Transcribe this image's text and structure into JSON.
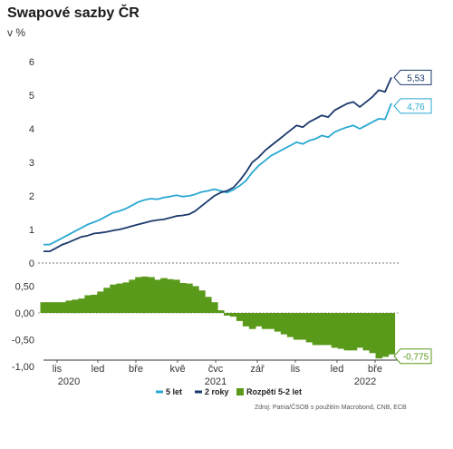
{
  "chart_data": {
    "type": "line",
    "title": "Swapové sazby ČR",
    "subtitle": "v %",
    "source": "Zdroj: Patria/ČSOB s použitím Macrobond, CNB, ECB",
    "colors": {
      "five": "#2aa8d2",
      "two": "#1b3a6b",
      "spread": "#5a9a1a",
      "zero_line": "#777777"
    },
    "x_ticks": [
      "lis",
      "led",
      "bře",
      "kvě",
      "čvc",
      "zář",
      "lis",
      "led",
      "bře"
    ],
    "x_years": [
      "2020",
      "2021",
      "2022"
    ],
    "top_panel": {
      "ylim": [
        0,
        6
      ],
      "y_ticks": [
        "0",
        "1",
        "2",
        "3",
        "4",
        "5",
        "6"
      ],
      "series": [
        {
          "name": "5 let",
          "key": "five",
          "end_label": "4,76",
          "values": [
            0.55,
            0.55,
            0.65,
            0.75,
            0.85,
            0.95,
            1.05,
            1.15,
            1.22,
            1.3,
            1.4,
            1.5,
            1.55,
            1.62,
            1.72,
            1.82,
            1.88,
            1.92,
            1.9,
            1.95,
            1.98,
            2.02,
            1.98,
            2.0,
            2.05,
            2.12,
            2.15,
            2.2,
            2.15,
            2.1,
            2.18,
            2.3,
            2.45,
            2.7,
            2.9,
            3.05,
            3.2,
            3.3,
            3.4,
            3.5,
            3.6,
            3.55,
            3.65,
            3.7,
            3.8,
            3.75,
            3.9,
            3.98,
            4.05,
            4.1,
            4.0,
            4.1,
            4.2,
            4.3,
            4.28,
            4.76
          ]
        },
        {
          "name": "2 roky",
          "key": "two",
          "end_label": "5,53",
          "values": [
            0.35,
            0.35,
            0.45,
            0.55,
            0.62,
            0.7,
            0.78,
            0.82,
            0.88,
            0.9,
            0.93,
            0.97,
            1.0,
            1.05,
            1.1,
            1.15,
            1.2,
            1.25,
            1.28,
            1.3,
            1.35,
            1.4,
            1.42,
            1.45,
            1.55,
            1.7,
            1.85,
            2.0,
            2.1,
            2.15,
            2.25,
            2.45,
            2.7,
            3.0,
            3.15,
            3.35,
            3.5,
            3.65,
            3.8,
            3.95,
            4.1,
            4.05,
            4.2,
            4.3,
            4.4,
            4.35,
            4.55,
            4.65,
            4.75,
            4.8,
            4.65,
            4.8,
            4.95,
            5.15,
            5.1,
            5.53
          ]
        }
      ]
    },
    "bottom_panel": {
      "ylim": [
        -1.0,
        0.75
      ],
      "y_ticks": [
        "0,50",
        "0,00",
        "-0,50",
        "-1,00"
      ],
      "series": [
        {
          "name": "Rozpětí 5-2 let",
          "key": "spread",
          "type": "area",
          "end_label": "-0,775",
          "values": [
            0.2,
            0.2,
            0.2,
            0.2,
            0.23,
            0.25,
            0.27,
            0.33,
            0.34,
            0.4,
            0.47,
            0.53,
            0.55,
            0.57,
            0.62,
            0.67,
            0.68,
            0.67,
            0.62,
            0.65,
            0.63,
            0.62,
            0.56,
            0.55,
            0.5,
            0.42,
            0.3,
            0.2,
            0.05,
            -0.05,
            -0.07,
            -0.15,
            -0.25,
            -0.3,
            -0.25,
            -0.3,
            -0.3,
            -0.35,
            -0.4,
            -0.45,
            -0.5,
            -0.5,
            -0.55,
            -0.6,
            -0.6,
            -0.6,
            -0.65,
            -0.67,
            -0.7,
            -0.7,
            -0.65,
            -0.7,
            -0.75,
            -0.85,
            -0.82,
            -0.775
          ]
        }
      ]
    },
    "legend": [
      "5 let",
      "2 roky",
      "Rozpětí 5-2 let"
    ]
  }
}
